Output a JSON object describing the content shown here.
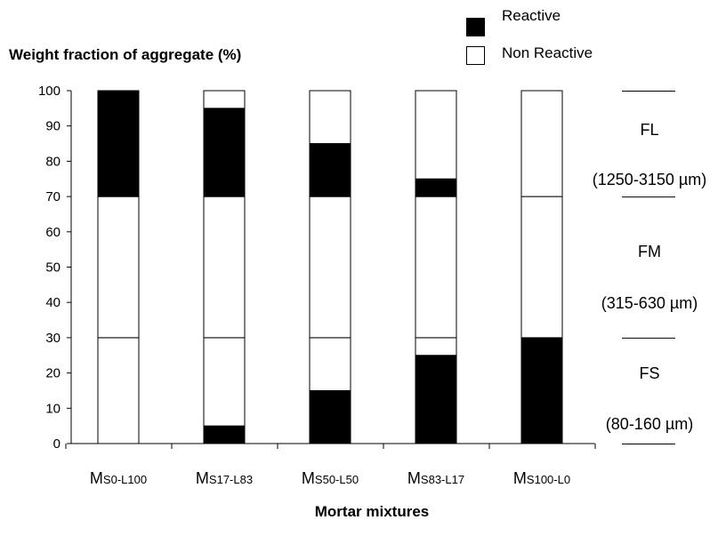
{
  "chart_data": {
    "type": "bar",
    "stacked": true,
    "ylabel": "Weight fraction of aggregate (%)",
    "xlabel": "Mortar mixtures",
    "ylim": [
      0,
      100
    ],
    "yticks": [
      0,
      10,
      20,
      30,
      40,
      50,
      60,
      70,
      80,
      90,
      100
    ],
    "categories": [
      {
        "main": "M",
        "sub": "S0-L100"
      },
      {
        "main": "M",
        "sub": "S17-L83"
      },
      {
        "main": "M",
        "sub": "S50-L50"
      },
      {
        "main": "M",
        "sub": "S83-L17"
      },
      {
        "main": "M",
        "sub": "S100-L0"
      }
    ],
    "fraction_segments": [
      [
        {
          "name": "FS",
          "from": 0,
          "to": 30,
          "reactive": 0
        },
        {
          "name": "FM",
          "from": 30,
          "to": 70,
          "reactive": 0
        },
        {
          "name": "FL",
          "from": 70,
          "to": 100,
          "reactive": 30
        }
      ],
      [
        {
          "name": "FS",
          "from": 0,
          "to": 30,
          "reactive": 5
        },
        {
          "name": "FM",
          "from": 30,
          "to": 70,
          "reactive": 0
        },
        {
          "name": "FL",
          "from": 70,
          "to": 100,
          "reactive": 25
        }
      ],
      [
        {
          "name": "FS",
          "from": 0,
          "to": 30,
          "reactive": 15
        },
        {
          "name": "FM",
          "from": 30,
          "to": 70,
          "reactive": 0
        },
        {
          "name": "FL",
          "from": 70,
          "to": 100,
          "reactive": 15
        }
      ],
      [
        {
          "name": "FS",
          "from": 0,
          "to": 30,
          "reactive": 25
        },
        {
          "name": "FM",
          "from": 30,
          "to": 70,
          "reactive": 0
        },
        {
          "name": "FL",
          "from": 70,
          "to": 100,
          "reactive": 5
        }
      ],
      [
        {
          "name": "FS",
          "from": 0,
          "to": 30,
          "reactive": 30
        },
        {
          "name": "FM",
          "from": 30,
          "to": 70,
          "reactive": 0
        },
        {
          "name": "FL",
          "from": 70,
          "to": 100,
          "reactive": 0
        }
      ]
    ],
    "legend": [
      {
        "name": "Reactive",
        "color": "#000000"
      },
      {
        "name": "Non Reactive",
        "color": "#ffffff"
      }
    ],
    "legend_position": "top-right",
    "zones": [
      {
        "name": "FL",
        "range": "(1250-3150 µm)",
        "from": 70,
        "to": 100
      },
      {
        "name": "FM",
        "range": "(315-630 µm)",
        "from": 30,
        "to": 70
      },
      {
        "name": "FS",
        "range": "(80-160 µm)",
        "from": 0,
        "to": 30
      }
    ],
    "grid": false
  }
}
